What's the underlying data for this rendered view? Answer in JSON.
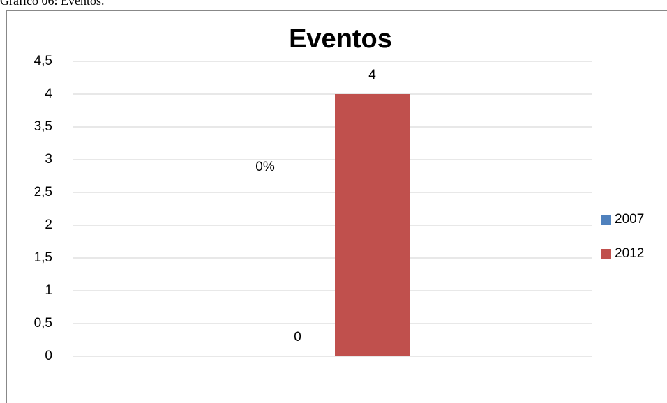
{
  "caption": "Gráfico 06: Eventos.",
  "chart_data": {
    "type": "bar",
    "title": "Eventos",
    "categories": [
      null
    ],
    "series": [
      {
        "name": "2007",
        "color": "#4f81bd",
        "values": [
          0
        ]
      },
      {
        "name": "2012",
        "color": "#c0504d",
        "values": [
          4
        ]
      }
    ],
    "annotations": [
      "0%"
    ],
    "ylim": [
      0,
      4.5
    ],
    "yticks": [
      0,
      {
        "value": 0.5,
        "label": "0,5"
      },
      1,
      {
        "value": 1.5,
        "label": "1,5"
      },
      2,
      {
        "value": 2.5,
        "label": "2,5"
      },
      3,
      {
        "value": 3.5,
        "label": "3,5"
      },
      4,
      {
        "value": 4.5,
        "label": "4,5"
      }
    ],
    "grid": true,
    "legend": "right",
    "data_labels": true
  }
}
